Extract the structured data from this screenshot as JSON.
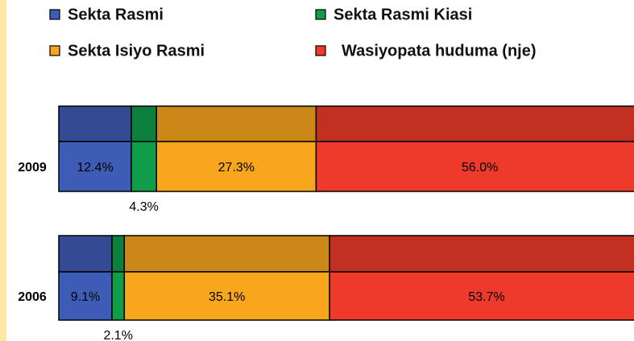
{
  "chart_data": {
    "type": "stacked_bar_horizontal",
    "categories": [
      "2009",
      "2006"
    ],
    "series": [
      {
        "name": "Sekta Rasmi",
        "color": "#3d5cb5",
        "values": [
          12.4,
          9.1
        ],
        "value_labels": [
          "12.4%",
          "9.1%"
        ]
      },
      {
        "name": "Sekta Rasmi Kiasi",
        "color": "#0f9d4a",
        "values": [
          4.3,
          2.1
        ],
        "value_labels": [
          "4.3%",
          "2.1%"
        ]
      },
      {
        "name": "Sekta Isiyo Rasmi",
        "color": "#f8a61c",
        "values": [
          27.3,
          35.1
        ],
        "value_labels": [
          "27.3%",
          "35.1%"
        ]
      },
      {
        "name": "Wasiyopata huduma (nje)",
        "color": "#ed3a2a",
        "values": [
          56.0,
          53.7
        ],
        "value_labels": [
          "56.0%",
          "53.7%"
        ]
      }
    ],
    "xlim": [
      0,
      100
    ]
  }
}
